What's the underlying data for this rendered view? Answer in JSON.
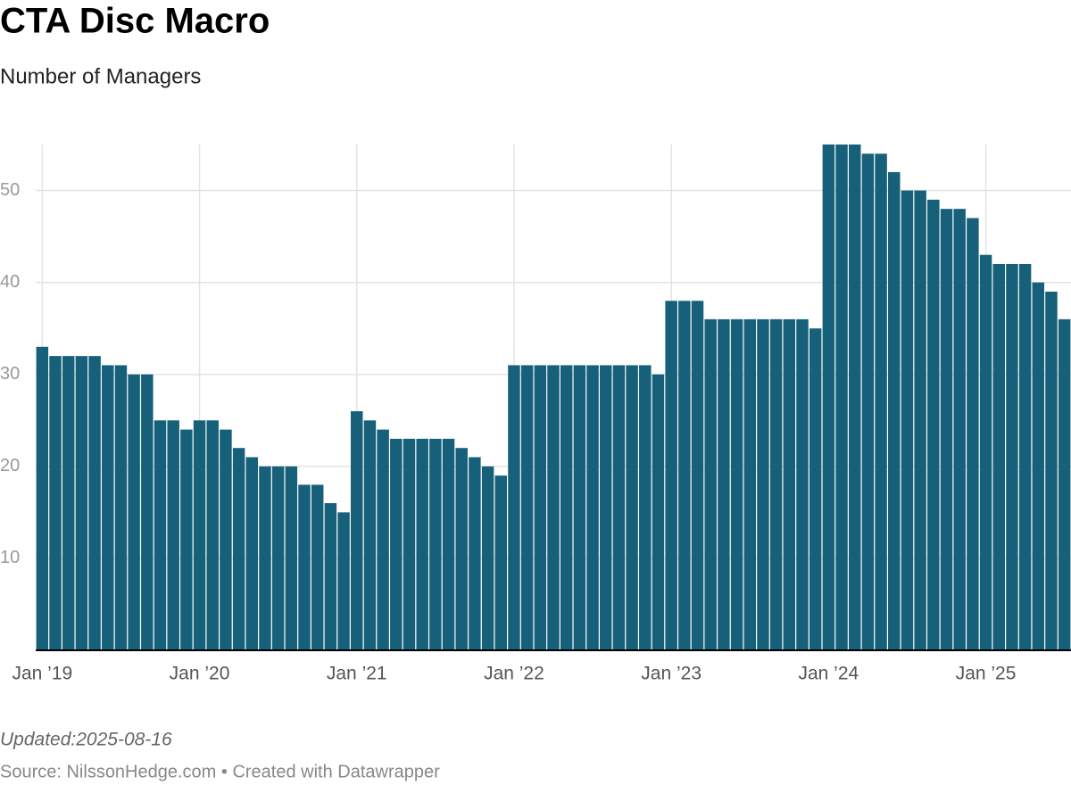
{
  "chart_data": {
    "type": "bar",
    "title": "CTA Disc Macro",
    "subtitle": "Number of Managers",
    "categories": [
      "Jan ’19",
      null,
      null,
      null,
      null,
      null,
      null,
      null,
      null,
      null,
      null,
      null,
      "Jan ’20",
      null,
      null,
      null,
      null,
      null,
      null,
      null,
      null,
      null,
      null,
      null,
      "Jan ’21",
      null,
      null,
      null,
      null,
      null,
      null,
      null,
      null,
      null,
      null,
      null,
      "Jan ’22",
      null,
      null,
      null,
      null,
      null,
      null,
      null,
      null,
      null,
      null,
      null,
      "Jan ’23",
      null,
      null,
      null,
      null,
      null,
      null,
      null,
      null,
      null,
      null,
      null,
      "Jan ’24",
      null,
      null,
      null,
      null,
      null,
      null,
      null,
      null,
      null,
      null,
      null,
      "Jan ’25",
      null,
      null,
      null,
      null,
      null,
      null
    ],
    "values": [
      33,
      32,
      32,
      32,
      32,
      31,
      31,
      30,
      30,
      25,
      25,
      24,
      25,
      25,
      24,
      22,
      21,
      20,
      20,
      20,
      18,
      18,
      16,
      15,
      26,
      25,
      24,
      23,
      23,
      23,
      23,
      23,
      22,
      21,
      20,
      19,
      31,
      31,
      31,
      31,
      31,
      31,
      31,
      31,
      31,
      31,
      31,
      30,
      38,
      38,
      38,
      36,
      36,
      36,
      36,
      36,
      36,
      36,
      36,
      35,
      55,
      55,
      55,
      54,
      54,
      52,
      50,
      50,
      49,
      48,
      48,
      47,
      43,
      42,
      42,
      42,
      40,
      39,
      36
    ],
    "color": "#17607a",
    "ylim": [
      0,
      55
    ],
    "yticks": [
      10,
      20,
      30,
      40,
      50
    ],
    "grid": true,
    "note": "Updated:2025-08-16",
    "source": "Source: NilssonHedge.com • Created with Datawrapper"
  }
}
